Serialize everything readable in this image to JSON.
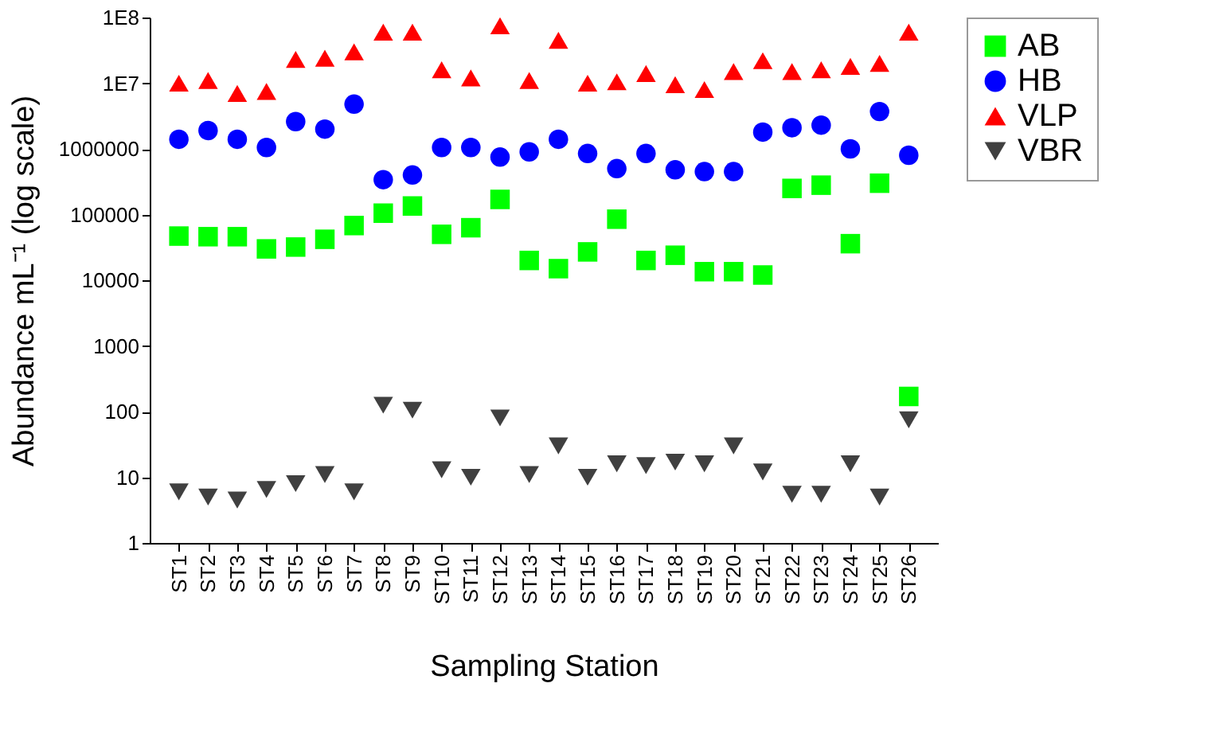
{
  "chart_data": {
    "type": "scatter",
    "xlabel": "Sampling Station",
    "ylabel": "Abundance mL⁻¹ (log scale)",
    "categories": [
      "ST1",
      "ST2",
      "ST3",
      "ST4",
      "ST5",
      "ST6",
      "ST7",
      "ST8",
      "ST9",
      "ST10",
      "ST11",
      "ST12",
      "ST13",
      "ST14",
      "ST15",
      "ST16",
      "ST17",
      "ST18",
      "ST19",
      "ST20",
      "ST21",
      "ST22",
      "ST23",
      "ST24",
      "ST25",
      "ST26"
    ],
    "series": [
      {
        "name": "AB",
        "color": "#00ff00",
        "marker": "square",
        "values": [
          47000,
          46000,
          46000,
          30000,
          32000,
          42000,
          68000,
          105000,
          135000,
          50000,
          63000,
          170000,
          20000,
          15000,
          27000,
          85000,
          20000,
          24000,
          13500,
          13500,
          12000,
          250000,
          280000,
          36000,
          300000,
          170
        ]
      },
      {
        "name": "HB",
        "color": "#0000ff",
        "marker": "circle",
        "values": [
          1400000,
          1900000,
          1400000,
          1050000,
          2600000,
          2000000,
          4800000,
          340000,
          400000,
          1050000,
          1050000,
          750000,
          900000,
          1400000,
          850000,
          500000,
          850000,
          480000,
          450000,
          450000,
          1800000,
          2100000,
          2300000,
          1000000,
          3700000,
          800000
        ]
      },
      {
        "name": "VLP",
        "color": "#ff0000",
        "marker": "triangle",
        "values": [
          10000000,
          11000000,
          7000000,
          7500000,
          23000000,
          24000000,
          30000000,
          60000000,
          60000000,
          16000000,
          12000000,
          75000000,
          11000000,
          45000000,
          10000000,
          10500000,
          14000000,
          9500000,
          8000000,
          15000000,
          22000000,
          15000000,
          16000000,
          18000000,
          20000000,
          60000000
        ]
      },
      {
        "name": "VBR",
        "color": "#404040",
        "marker": "triangle-down",
        "values": [
          6,
          5,
          4.5,
          6.5,
          8,
          11,
          6,
          125,
          105,
          13,
          10,
          80,
          11,
          30,
          10,
          16,
          15,
          17,
          16,
          30,
          12,
          5.5,
          5.5,
          16,
          5,
          75
        ]
      }
    ],
    "log": true,
    "ylim": [
      1,
      100000000
    ],
    "yticks": [
      1,
      10,
      100,
      1000,
      10000,
      100000,
      1000000,
      {
        "value": 10000000,
        "label": "1E7"
      },
      {
        "value": 100000000,
        "label": "1E8"
      }
    ],
    "grid": false,
    "legend": "top right"
  }
}
